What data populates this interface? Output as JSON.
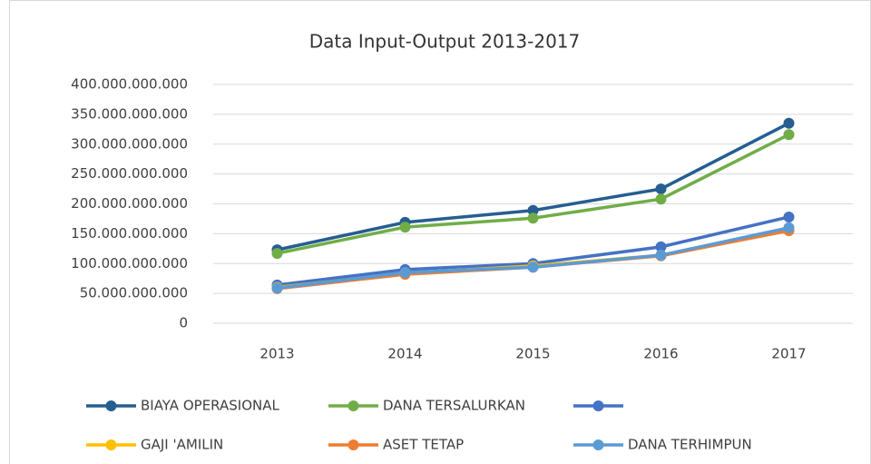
{
  "chart_data": {
    "type": "line",
    "title": "Data Input-Output  2013-2017",
    "categories": [
      "2013",
      "2014",
      "2015",
      "2016",
      "2017"
    ],
    "series": [
      {
        "name": "BIAYA OPERASIONAL",
        "color": "#255e91",
        "values": [
          123000000000,
          169000000000,
          189000000000,
          225000000000,
          335000000000
        ]
      },
      {
        "name": "DANA TERSALURKAN",
        "color": "#70ad47",
        "values": [
          117000000000,
          161000000000,
          176000000000,
          208000000000,
          316000000000
        ]
      },
      {
        "name": null,
        "color": "#4472c4",
        "values": [
          64000000000,
          90000000000,
          100000000000,
          128000000000,
          178000000000
        ]
      },
      {
        "name": "GAJI 'AMILIN",
        "color": "#ffc000",
        "values": [
          60000000000,
          84000000000,
          96000000000,
          114000000000,
          157000000000
        ]
      },
      {
        "name": "ASET TETAP",
        "color": "#ed7d31",
        "values": [
          58000000000,
          82000000000,
          94000000000,
          113000000000,
          155000000000
        ]
      },
      {
        "name": "DANA TERHIMPUN",
        "color": "#5b9bd5",
        "values": [
          59000000000,
          85000000000,
          94000000000,
          114000000000,
          160000000000
        ]
      }
    ],
    "ylim": [
      0,
      400000000000
    ],
    "yticks": [
      0,
      {
        "value": 50000000000,
        "label": "50.000.000.000"
      },
      {
        "value": 100000000000,
        "label": "100.000.000.000"
      },
      {
        "value": 150000000000,
        "label": "150.000.000.000"
      },
      {
        "value": 200000000000,
        "label": "200.000.000.000"
      },
      {
        "value": 250000000000,
        "label": "250.000.000.000"
      },
      {
        "value": 300000000000,
        "label": "300.000.000.000"
      },
      {
        "value": 350000000000,
        "label": "350.000.000.000"
      },
      {
        "value": 400000000000,
        "label": "400.000.000.000"
      }
    ],
    "grid": true,
    "legend": "bottom"
  }
}
